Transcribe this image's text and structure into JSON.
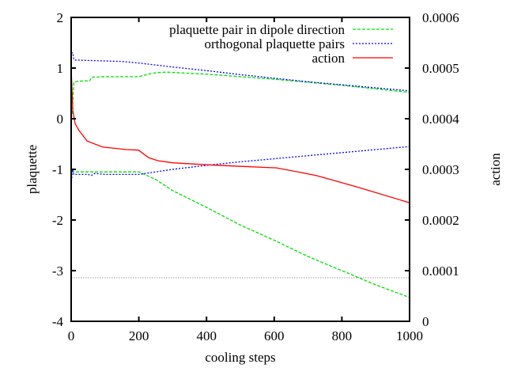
{
  "chart_data": {
    "type": "line",
    "title": "",
    "xlabel": "cooling steps",
    "ylabel": "plaquette",
    "y2label": "action",
    "xlim": [
      0,
      1000
    ],
    "ylim": [
      -4,
      2
    ],
    "y2lim": [
      0,
      0.0006
    ],
    "xticks": [
      "0",
      "200",
      "400",
      "600",
      "800",
      "1000"
    ],
    "yticks": [
      "2",
      "1",
      "0",
      "-1",
      "-2",
      "-3",
      "-4"
    ],
    "y2ticks": [
      "0.0006",
      "0.0005",
      "0.0004",
      "0.0003",
      "0.0002",
      "0.0001",
      "0"
    ],
    "grid": false,
    "legend_position": "top-right",
    "reference_line": {
      "y": -3.14,
      "style": "dotted",
      "color": "#a0a0a0"
    },
    "series": [
      {
        "name": "plaquette pair in dipole direction",
        "axis": "left",
        "color": "#00e000",
        "dash": "dashed",
        "segments": [
          {
            "x": [
              0,
              3,
              8,
              20,
              55,
              60,
              100,
              150,
              200,
              240,
              280,
              400,
              600,
              800,
              1000
            ],
            "y": [
              0.0,
              0.1,
              0.72,
              0.74,
              0.75,
              0.82,
              0.83,
              0.83,
              0.83,
              0.9,
              0.92,
              0.88,
              0.78,
              0.66,
              0.52
            ]
          },
          {
            "x": [
              0,
              50,
              100,
              150,
              200,
              250,
              300,
              400,
              500,
              600,
              700,
              800,
              900,
              1000
            ],
            "y": [
              -1.05,
              -1.05,
              -1.05,
              -1.05,
              -1.05,
              -1.2,
              -1.42,
              -1.75,
              -2.1,
              -2.4,
              -2.72,
              -3.0,
              -3.28,
              -3.53
            ]
          }
        ]
      },
      {
        "name": "orthogonal plaquette pairs",
        "axis": "left",
        "color": "#0000ff",
        "dash": "dotted",
        "segments": [
          {
            "x": [
              0,
              5,
              8,
              12,
              50,
              100,
              150,
              200,
              300,
              400,
              500,
              600,
              700,
              800,
              900,
              1000
            ],
            "y": [
              1.3,
              1.3,
              1.17,
              1.16,
              1.15,
              1.14,
              1.13,
              1.1,
              1.02,
              0.95,
              0.87,
              0.8,
              0.73,
              0.67,
              0.61,
              0.55
            ]
          },
          {
            "x": [
              0,
              4,
              8,
              12,
              50,
              60,
              70,
              100,
              150,
              200,
              300,
              400,
              500,
              600,
              700,
              800,
              900,
              1000
            ],
            "y": [
              -1.3,
              -1.0,
              -1.1,
              -1.1,
              -1.1,
              -1.12,
              -1.08,
              -1.1,
              -1.1,
              -1.1,
              -1.0,
              -0.92,
              -0.85,
              -0.79,
              -0.73,
              -0.67,
              -0.61,
              -0.55
            ]
          }
        ]
      },
      {
        "name": "action",
        "axis": "right",
        "color": "#ff0000",
        "dash": "solid",
        "segments": [
          {
            "x": [
              0,
              5,
              12,
              23,
              47,
              93,
              164,
              199,
              215,
              229,
              257,
              300,
              400,
              500,
              607,
              724,
              841,
              1000
            ],
            "y": [
              0.0005,
              0.000416,
              0.00039,
              0.000377,
              0.000356,
              0.000344,
              0.000339,
              0.000338,
              0.00033,
              0.000323,
              0.000317,
              0.000313,
              0.000309,
              0.000306,
              0.000303,
              0.000288,
              0.000266,
              0.000234
            ]
          }
        ]
      }
    ]
  }
}
